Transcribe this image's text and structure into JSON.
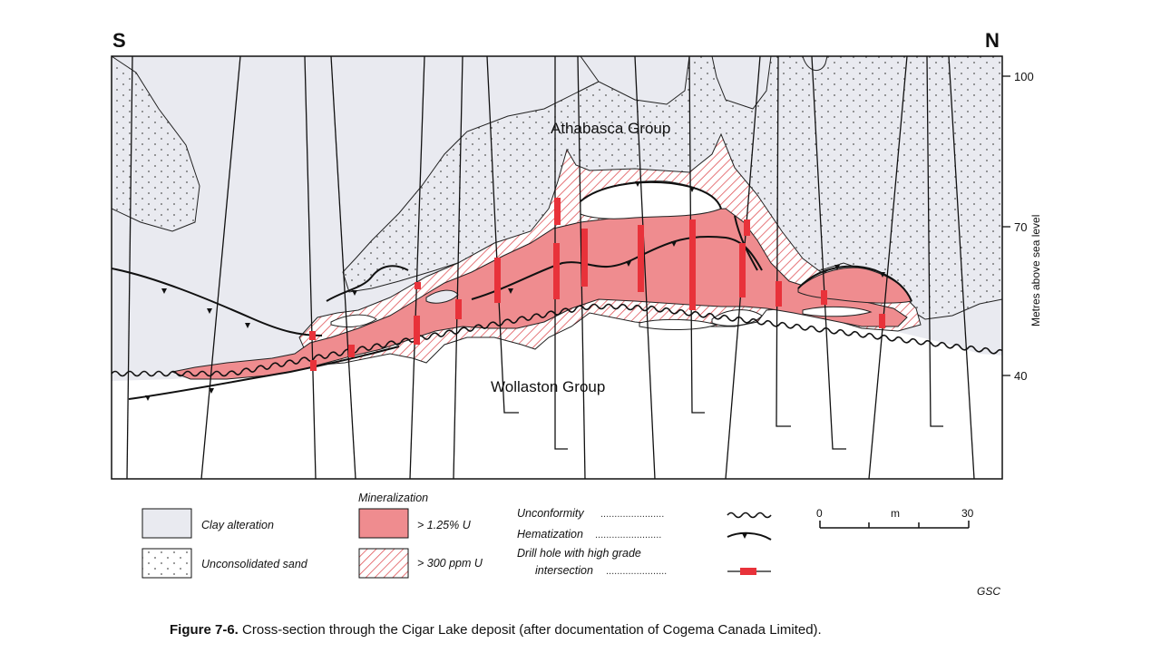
{
  "directions": {
    "south": "S",
    "north": "N"
  },
  "labels": {
    "athabasca": "Athabasca Group",
    "wollaston": "Wollaston Group",
    "credit": "GSC"
  },
  "axis": {
    "title": "Metres above sea level",
    "ticks": [
      "100",
      "70",
      "40"
    ]
  },
  "legend": {
    "clay": "Clay alteration",
    "sand": "Unconsolidated sand",
    "mineralization_title": "Mineralization",
    "high": "> 1.25% U",
    "low": "> 300 ppm U",
    "unconformity": "Unconformity",
    "hematization": "Hematization",
    "drill_line1": "Drill hole with high grade",
    "drill_line2": "intersection"
  },
  "scale": {
    "start": "0",
    "unit": "m",
    "end": "30"
  },
  "caption": {
    "number": "Figure 7-6.",
    "text": "Cross-section through the Cigar Lake deposit (after documentation of Cogema Canada Limited)."
  },
  "colors": {
    "clay": "#e9eaf0",
    "ore_high": "#ef8c8f",
    "ore_low_hatch": "#e0555a",
    "drill_intersection": "#e8323a",
    "line": "#111111"
  }
}
